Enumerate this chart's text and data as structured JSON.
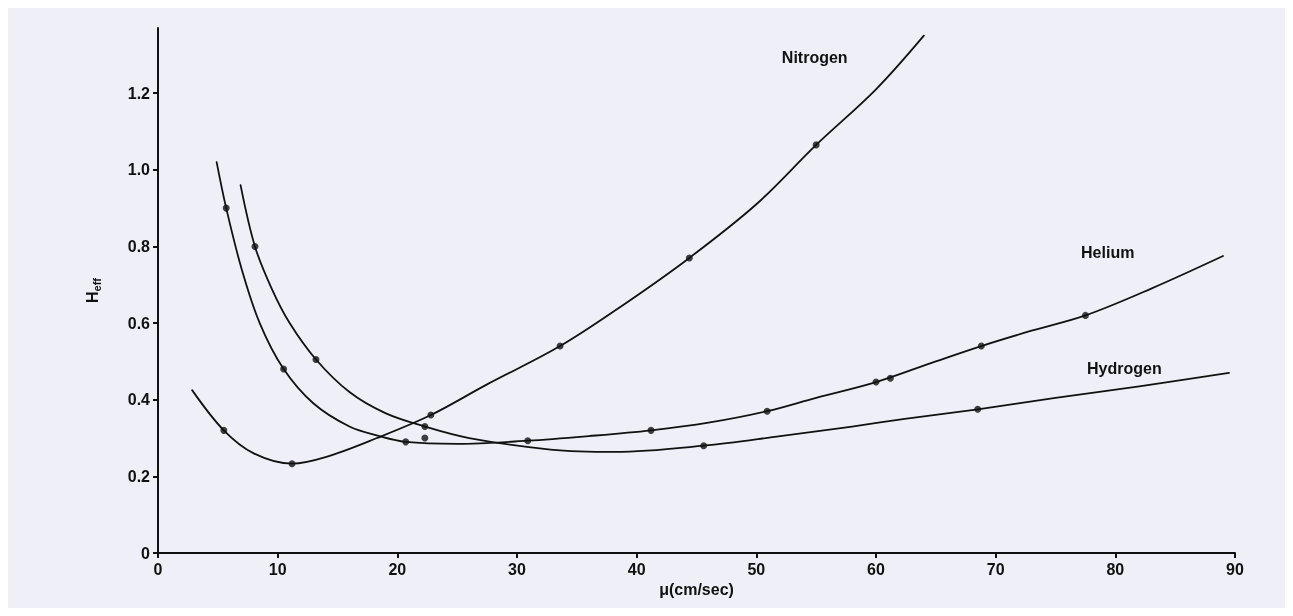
{
  "chart_data": {
    "type": "line",
    "xlabel": "μ(cm/sec)",
    "ylabel": "H$_{eff}$",
    "xlim": [
      0,
      90
    ],
    "xticks": [
      0,
      10,
      20,
      30,
      40,
      50,
      60,
      70,
      80,
      90
    ],
    "ylim": [
      0,
      1.37
    ],
    "yticks": [
      0,
      0.2,
      0.4,
      0.6,
      0.8,
      {
        "value": 1,
        "label": "1.0"
      },
      1.2
    ],
    "grid": false,
    "legend": false,
    "marker": "none",
    "line_style": "solid",
    "series": [
      {
        "name": "Nitrogen",
        "color": "#111111",
        "x": [
          2.85,
          5.5,
          8,
          11.2,
          14,
          18.3,
          22.8,
          27.5,
          33.6,
          39,
          44.4,
          50,
          55,
          60,
          64
        ],
        "values": [
          0.425,
          0.32,
          0.26,
          0.233,
          0.25,
          0.3,
          0.36,
          0.44,
          0.54,
          0.65,
          0.77,
          0.91,
          1.065,
          1.21,
          1.35
        ]
      },
      {
        "name": "Helium",
        "color": "#111111",
        "x": [
          4.9,
          5.7,
          7,
          8.5,
          10.5,
          13,
          16,
          18.5,
          20.7,
          25,
          30.9,
          36,
          41.2,
          46,
          50.9,
          55,
          60,
          65,
          68.8,
          73,
          77.5,
          83,
          89
        ],
        "values": [
          1.02,
          0.9,
          0.74,
          0.6,
          0.48,
          0.39,
          0.33,
          0.305,
          0.29,
          0.285,
          0.293,
          0.305,
          0.32,
          0.34,
          0.37,
          0.405,
          0.446,
          0.5,
          0.54,
          0.58,
          0.62,
          0.69,
          0.775
        ]
      },
      {
        "name": "Hydrogen",
        "color": "#111111",
        "x": [
          6.9,
          8.1,
          9.5,
          11,
          13.2,
          16,
          19,
          22.3,
          26,
          32.8,
          38.2,
          45.6,
          52,
          58,
          62.4,
          68.5,
          75,
          82,
          89.5
        ],
        "values": [
          0.96,
          0.8,
          0.69,
          0.6,
          0.505,
          0.42,
          0.365,
          0.33,
          0.3,
          0.27,
          0.264,
          0.28,
          0.305,
          0.33,
          0.35,
          0.375,
          0.405,
          0.435,
          0.47
        ]
      },
      {
        "type": "scatter",
        "marker": "circle",
        "color": "#111111",
        "x": [
          5.5,
          11.2,
          22.8,
          33.6,
          44.4,
          55,
          5.7,
          10.5,
          20.7,
          22.3,
          30.9,
          41.2,
          50.9,
          60,
          61.2,
          68.8,
          77.5,
          8.1,
          13.2,
          22.3,
          45.6,
          68.5
        ],
        "values": [
          0.32,
          0.233,
          0.36,
          0.54,
          0.77,
          1.065,
          0.9,
          0.48,
          0.29,
          0.3,
          0.293,
          0.32,
          0.37,
          0.446,
          0.456,
          0.54,
          0.62,
          0.8,
          0.505,
          0.33,
          0.28,
          0.375
        ]
      }
    ]
  }
}
